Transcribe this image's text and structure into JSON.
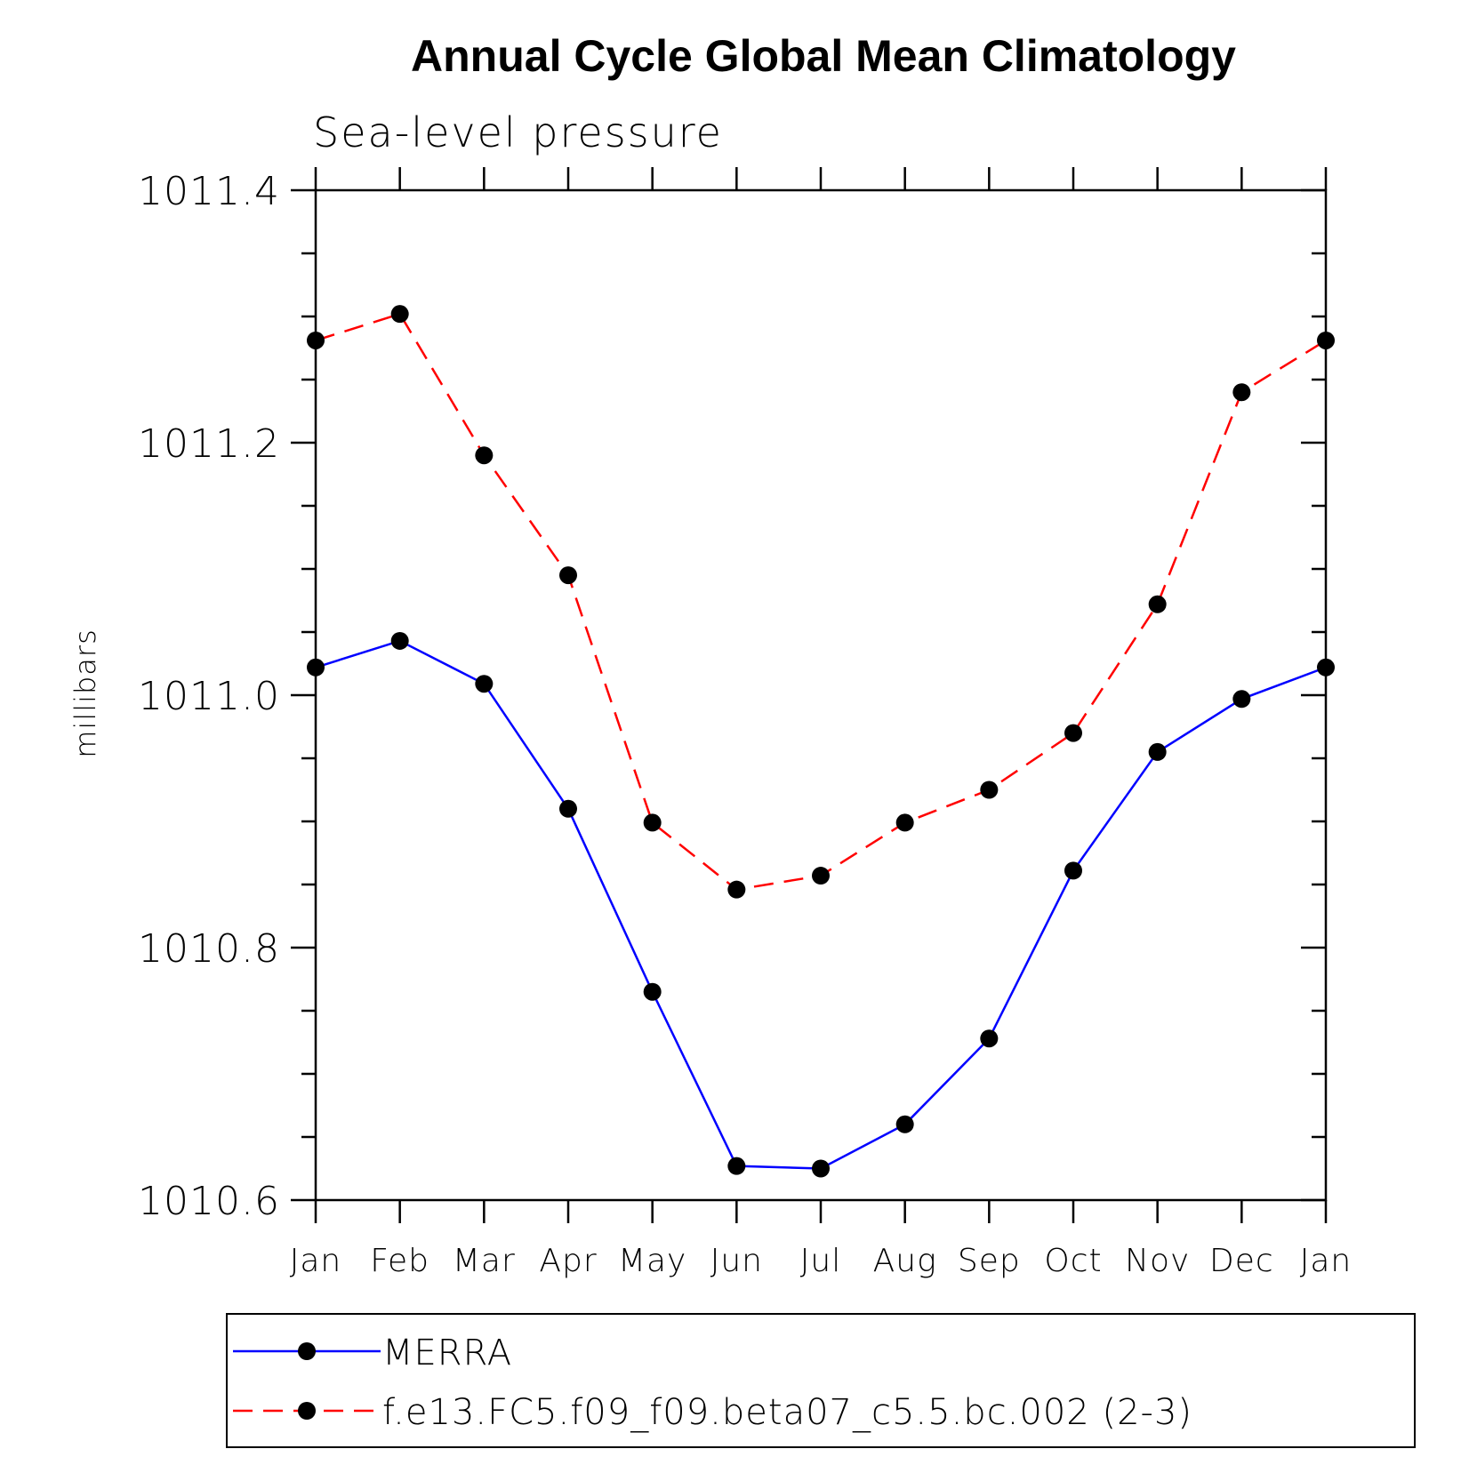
{
  "chart_data": {
    "type": "line",
    "title": "Annual Cycle Global Mean Climatology",
    "subtitle": "Sea-level pressure",
    "xlabel": "",
    "ylabel": "millibars",
    "categories": [
      "Jan",
      "Feb",
      "Mar",
      "Apr",
      "May",
      "Jun",
      "Jul",
      "Aug",
      "Sep",
      "Oct",
      "Nov",
      "Dec",
      "Jan"
    ],
    "ylim": [
      1010.6,
      1011.4
    ],
    "yticks": [
      "1010.6",
      "1010.8",
      "1011.0",
      "1011.2",
      "1011.4"
    ],
    "grid": false,
    "legend_position": "bottom",
    "series": [
      {
        "name": "MERRA",
        "color": "#0000ff",
        "line_style": "solid",
        "marker": "filled-circle",
        "values": [
          1011.022,
          1011.043,
          1011.009,
          1010.91,
          1010.765,
          1010.627,
          1010.625,
          1010.66,
          1010.728,
          1010.861,
          1010.955,
          1010.997,
          1011.022
        ]
      },
      {
        "name": "f.e13.FC5.f09_f09.beta07_c5.5.bc.002 (2-3)",
        "color": "#ff0000",
        "line_style": "dashed",
        "marker": "filled-circle",
        "values": [
          1011.281,
          1011.302,
          1011.19,
          1011.095,
          1010.899,
          1010.846,
          1010.857,
          1010.899,
          1010.925,
          1010.97,
          1011.072,
          1011.24,
          1011.281
        ]
      }
    ]
  }
}
